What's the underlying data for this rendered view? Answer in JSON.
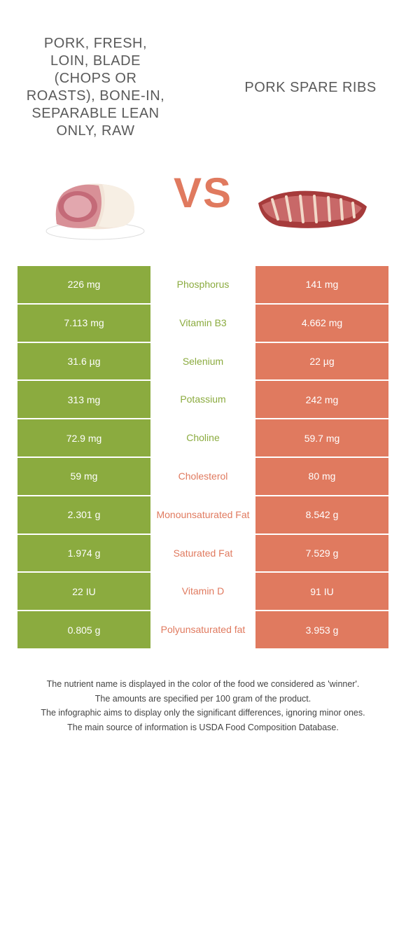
{
  "colors": {
    "left": "#8bab3f",
    "right": "#e07a5f",
    "vs": "#e07a5f",
    "title": "#5a5a5a"
  },
  "foods": {
    "left": {
      "title": "Pork, fresh, loin, blade (chops or roasts), bone-in, separable lean only, raw"
    },
    "right": {
      "title": "Pork spare ribs"
    }
  },
  "vs_label": "VS",
  "rows": [
    {
      "left": "226 mg",
      "name": "Phosphorus",
      "right": "141 mg",
      "winner": "left"
    },
    {
      "left": "7.113 mg",
      "name": "Vitamin B3",
      "right": "4.662 mg",
      "winner": "left"
    },
    {
      "left": "31.6 µg",
      "name": "Selenium",
      "right": "22 µg",
      "winner": "left"
    },
    {
      "left": "313 mg",
      "name": "Potassium",
      "right": "242 mg",
      "winner": "left"
    },
    {
      "left": "72.9 mg",
      "name": "Choline",
      "right": "59.7 mg",
      "winner": "left"
    },
    {
      "left": "59 mg",
      "name": "Cholesterol",
      "right": "80 mg",
      "winner": "right"
    },
    {
      "left": "2.301 g",
      "name": "Monounsaturated Fat",
      "right": "8.542 g",
      "winner": "right"
    },
    {
      "left": "1.974 g",
      "name": "Saturated Fat",
      "right": "7.529 g",
      "winner": "right"
    },
    {
      "left": "22 IU",
      "name": "Vitamin D",
      "right": "91 IU",
      "winner": "right"
    },
    {
      "left": "0.805 g",
      "name": "Polyunsaturated fat",
      "right": "3.953 g",
      "winner": "right"
    }
  ],
  "footer": [
    "The nutrient name is displayed in the color of the food we considered as 'winner'.",
    "The amounts are specified per 100 gram of the product.",
    "The infographic aims to display only the significant differences, ignoring minor ones.",
    "The main source of information is USDA Food Composition Database."
  ]
}
